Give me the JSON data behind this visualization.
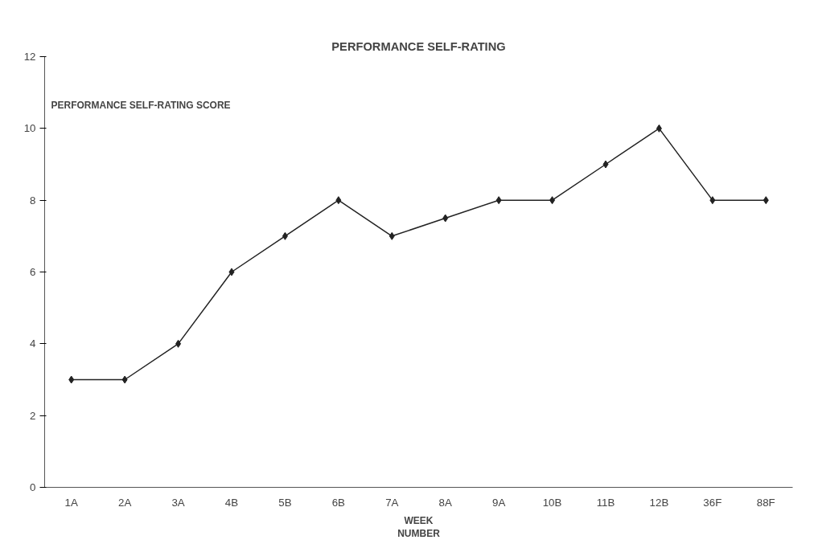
{
  "chart_data": {
    "type": "line",
    "title": "PERFORMANCE SELF-RATING",
    "xlabel": "WEEK\nNUMBER",
    "ylabel": "PERFORMANCE SELF-RATING SCORE",
    "categories": [
      "1A",
      "2A",
      "3A",
      "4B",
      "5B",
      "6B",
      "7A",
      "8A",
      "9A",
      "10B",
      "11B",
      "12B",
      "36F",
      "88F"
    ],
    "series": [
      {
        "color": "#222222",
        "values": [
          3,
          3,
          4,
          6,
          7,
          8,
          7,
          7.5,
          8,
          8,
          9,
          10,
          8,
          8
        ]
      }
    ],
    "ylim": [
      0,
      12
    ],
    "yticks": [
      0,
      2,
      4,
      6,
      8,
      10,
      12
    ],
    "grid": false,
    "marker": "diamond",
    "line_style": "solid"
  }
}
